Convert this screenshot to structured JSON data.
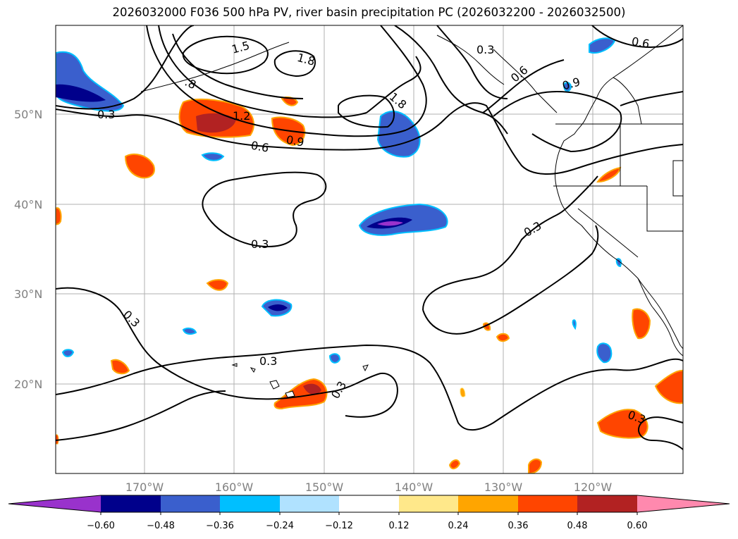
{
  "title": "2026032000 F036 500 hPa PV, river basin precipitation PC (2026032200 - 2026032500)",
  "map": {
    "lat_labels": [
      "50°N",
      "40°N",
      "30°N",
      "20°N"
    ],
    "lon_labels": [
      "170°W",
      "160°W",
      "150°W",
      "140°W",
      "130°W",
      "120°W"
    ],
    "grid": true
  },
  "contour_labels": [
    {
      "text": "1.5"
    },
    {
      "text": "1.8"
    },
    {
      "text": "1.2"
    },
    {
      "text": "0.6"
    },
    {
      "text": "0.9"
    },
    {
      "text": "0.3"
    },
    {
      "text": "1.8"
    },
    {
      "text": "0.3"
    },
    {
      "text": "0.6"
    },
    {
      "text": "0.6"
    },
    {
      "text": "0.9"
    },
    {
      "text": "0.3"
    },
    {
      "text": "0.3"
    },
    {
      "text": "0.3"
    },
    {
      "text": "0.3"
    },
    {
      "text": "0.3"
    },
    {
      "text": "0.3"
    },
    {
      "text": ".8"
    }
  ],
  "colorbar": {
    "ticks": [
      "−0.60",
      "−0.48",
      "−0.36",
      "−0.24",
      "−0.12",
      "0.12",
      "0.24",
      "0.36",
      "0.48",
      "0.60"
    ],
    "colors": [
      "#9932cc",
      "#00008b",
      "#3a5fcd",
      "#00bfff",
      "#b0e2ff",
      "#ffffff",
      "#ffe88a",
      "#ffa500",
      "#ff4500",
      "#b22222",
      "#ff89ae"
    ]
  },
  "colors": {
    "neg_strong": "#00008b",
    "neg_mid": "#3a5fcd",
    "neg_light": "#00bfff",
    "pos_mid": "#ff4500",
    "pos_strong": "#b22222",
    "pos_edge": "#ffa500"
  }
}
